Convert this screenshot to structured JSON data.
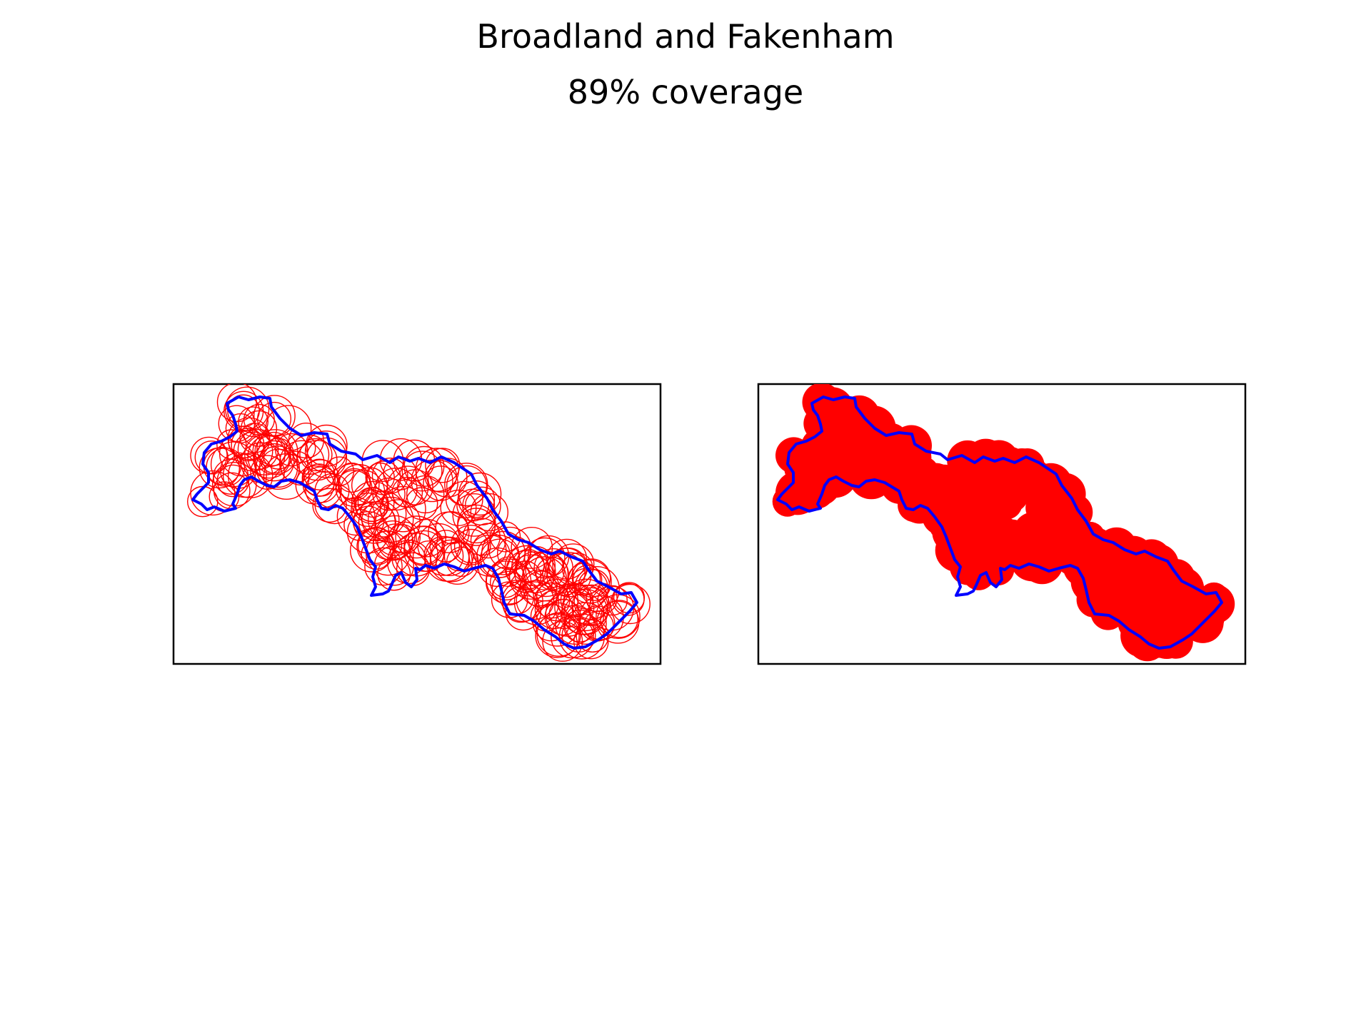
{
  "figure": {
    "title": "Broadland and Fakenham",
    "subtitle": "89% coverage"
  },
  "colors": {
    "boundary": "#0000ff",
    "coverage": "#ff0000",
    "frame": "#000000",
    "background": "#ffffff"
  },
  "panels": [
    {
      "id": "left",
      "style": "circle outlines"
    },
    {
      "id": "right",
      "style": "filled union"
    }
  ]
}
